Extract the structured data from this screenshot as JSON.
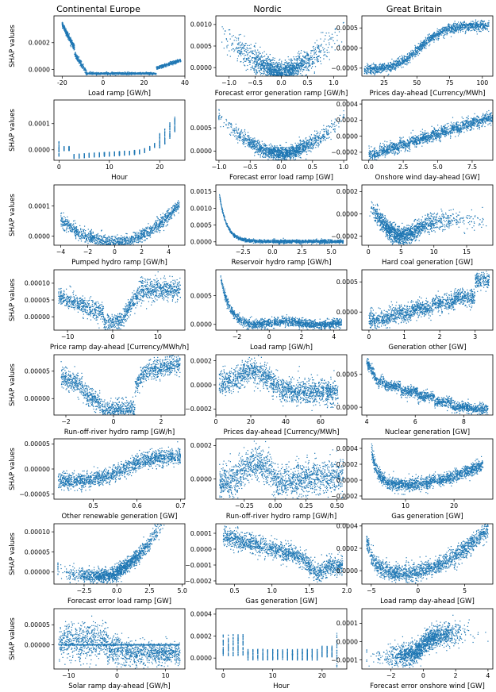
{
  "columns": [
    "Continental Europe",
    "Nordic",
    "Great Britain"
  ],
  "ylabel": "SHAP values",
  "colors": {
    "points": "#1f77b4"
  },
  "chart_data": [
    {
      "type": "scatter",
      "row": 0,
      "col": 0,
      "pattern": "ce_load_ramp",
      "xlabel": "Load ramp [GW/h]",
      "xlim": [
        -24,
        40
      ],
      "ylim": [
        -5e-05,
        0.0004
      ],
      "xticks": [
        -20,
        0,
        20,
        40
      ],
      "yticks": [
        0.0,
        0.0002
      ],
      "yticklabels": [
        "0.0000",
        "0.0002"
      ]
    },
    {
      "type": "scatter",
      "row": 0,
      "col": 1,
      "pattern": "vshape",
      "xlabel": "Forecast error generation ramp [GW/h]",
      "xlim": [
        -1.25,
        1.25
      ],
      "ylim": [
        -0.0002,
        0.0012
      ],
      "xticks": [
        -1.0,
        -0.5,
        0.0,
        0.5,
        1.0
      ],
      "xticklabels": [
        "−1.0",
        "−0.5",
        "0.0",
        "0.5",
        "1.0"
      ],
      "yticks": [
        0.0,
        0.0005,
        0.001
      ],
      "yticklabels": [
        "0.0000",
        "0.0005",
        "0.0010"
      ]
    },
    {
      "type": "scatter",
      "row": 0,
      "col": 2,
      "pattern": "sigmoid",
      "xlabel": "Prices day-ahead [Currency/MWh]",
      "xlim": [
        8,
        108
      ],
      "ylim": [
        -0.0007,
        0.0008
      ],
      "xticks": [
        25,
        50,
        75,
        100
      ],
      "yticks": [
        -0.0005,
        0.0,
        0.0005
      ],
      "yticklabels": [
        "−0.0005",
        "0.0000",
        "0.0005"
      ]
    },
    {
      "type": "scatter",
      "row": 1,
      "col": 0,
      "pattern": "hour_ce",
      "xlabel": "Hour",
      "xlim": [
        -1,
        25
      ],
      "ylim": [
        -4e-05,
        0.00019
      ],
      "xticks": [
        0,
        10,
        20
      ],
      "yticks": [
        0.0,
        0.0001
      ],
      "yticklabels": [
        "0.0000",
        "0.0001"
      ]
    },
    {
      "type": "scatter",
      "row": 1,
      "col": 1,
      "pattern": "vshape2",
      "xlabel": "Forecast error load ramp [GW]",
      "xlim": [
        -1.05,
        1.05
      ],
      "ylim": [
        -0.0002,
        0.0011
      ],
      "xticks": [
        -1.0,
        -0.5,
        0.0,
        0.5,
        1.0
      ],
      "xticklabels": [
        "−1.0",
        "−0.5",
        "0.0",
        "0.5",
        "1.0"
      ],
      "yticks": [
        0.0,
        0.0005
      ],
      "yticklabels": [
        "0.0000",
        "0.0005"
      ]
    },
    {
      "type": "scatter",
      "row": 1,
      "col": 2,
      "pattern": "steps_up",
      "xlabel": "Onshore wind day-ahead [GW]",
      "xlim": [
        -0.5,
        9
      ],
      "ylim": [
        -0.0003,
        0.00045
      ],
      "xticks": [
        0.0,
        2.5,
        5.0,
        7.5
      ],
      "xticklabels": [
        "0.0",
        "2.5",
        "5.0",
        "7.5"
      ],
      "yticks": [
        -0.0002,
        0.0,
        0.0002,
        0.0004
      ],
      "yticklabels": [
        "−0.0002",
        "0.0000",
        "0.0002",
        "0.0004"
      ]
    },
    {
      "type": "scatter",
      "row": 2,
      "col": 0,
      "pattern": "ushape",
      "xlabel": "Pumped hydro ramp [GW/h]",
      "xlim": [
        -4.5,
        5.2
      ],
      "ylim": [
        -3e-05,
        0.00017
      ],
      "xticks": [
        -4,
        -2,
        0,
        2,
        4
      ],
      "xticklabels": [
        "−4",
        "−2",
        "0",
        "2",
        "4"
      ],
      "yticks": [
        0.0,
        0.0001
      ],
      "yticklabels": [
        "0.0000",
        "0.0001"
      ]
    },
    {
      "type": "scatter",
      "row": 2,
      "col": 1,
      "pattern": "decay",
      "xlabel": "Reservoir hydro ramp [GW/h]",
      "xlim": [
        -4.8,
        6.3
      ],
      "ylim": [
        -0.0001,
        0.0017
      ],
      "xticks": [
        -2.5,
        0.0,
        2.5,
        5.0
      ],
      "xticklabels": [
        "−2.5",
        "0.0",
        "2.5",
        "5.0"
      ],
      "yticks": [
        0.0,
        0.0005,
        0.001,
        0.0015
      ],
      "yticklabels": [
        "0.0000",
        "0.0005",
        "0.0010",
        "0.0015"
      ]
    },
    {
      "type": "scatter",
      "row": 2,
      "col": 2,
      "pattern": "dip",
      "xlabel": "Hard coal generation [GW]",
      "xlim": [
        -1,
        19
      ],
      "ylim": [
        -0.00028,
        0.00026
      ],
      "xticks": [
        0,
        5,
        10,
        15
      ],
      "yticks": [
        -0.0002,
        0.0,
        0.0002
      ],
      "yticklabels": [
        "−0.0002",
        "0.0000",
        "0.0002"
      ]
    },
    {
      "type": "scatter",
      "row": 3,
      "col": 0,
      "pattern": "vdip",
      "xlabel": "Price ramp day-ahead [Currency/MWh/h]",
      "xlim": [
        -13,
        16
      ],
      "ylim": [
        -4e-05,
        0.00014
      ],
      "xticks": [
        -10,
        0,
        10
      ],
      "xticklabels": [
        "−10",
        "0",
        "10"
      ],
      "yticks": [
        0.0,
        5e-05,
        0.0001
      ],
      "yticklabels": [
        "0.00000",
        "0.00005",
        "0.00010"
      ]
    },
    {
      "type": "scatter",
      "row": 3,
      "col": 1,
      "pattern": "decay2",
      "xlabel": "Load ramp [GW/h]",
      "xlim": [
        -3.3,
        4.8
      ],
      "ylim": [
        -0.0001,
        0.00095
      ],
      "xticks": [
        -2,
        0,
        2,
        4
      ],
      "xticklabels": [
        "−2",
        "0",
        "2",
        "4"
      ],
      "yticks": [
        0.0,
        0.0005
      ],
      "yticklabels": [
        "0.0000",
        "0.0005"
      ]
    },
    {
      "type": "scatter",
      "row": 3,
      "col": 2,
      "pattern": "steps_up2",
      "xlabel": "Generation other [GW]",
      "xlim": [
        -0.2,
        3.5
      ],
      "ylim": [
        -0.0003,
        0.0007
      ],
      "xticks": [
        0,
        1,
        2,
        3
      ],
      "yticks": [
        0.0,
        0.0005
      ],
      "yticklabels": [
        "0.0000",
        "0.0005"
      ]
    },
    {
      "type": "scatter",
      "row": 4,
      "col": 0,
      "pattern": "bathtub",
      "xlabel": "Run-off-river hydro ramp [GW/h]",
      "xlim": [
        -2.5,
        3
      ],
      "ylim": [
        -3e-05,
        8e-05
      ],
      "xticks": [
        -2,
        0,
        2
      ],
      "xticklabels": [
        "−2",
        "0",
        "2"
      ],
      "yticks": [
        0.0,
        5e-05
      ],
      "yticklabels": [
        "0.00000",
        "0.00005"
      ]
    },
    {
      "type": "scatter",
      "row": 4,
      "col": 1,
      "pattern": "hump_down",
      "xlabel": "Prices day-ahead [Currency/MWh]",
      "xlim": [
        0,
        75
      ],
      "ylim": [
        -0.00025,
        0.00025
      ],
      "xticks": [
        0,
        20,
        40,
        60
      ],
      "yticks": [
        -0.0002,
        0.0,
        0.0002
      ],
      "yticklabels": [
        "−0.0002",
        "0.0000",
        "0.0002"
      ]
    },
    {
      "type": "scatter",
      "row": 4,
      "col": 2,
      "pattern": "steps_down",
      "xlabel": "Nuclear generation [GW]",
      "xlim": [
        3.8,
        9.2
      ],
      "ylim": [
        -0.00012,
        0.0008
      ],
      "xticks": [
        4,
        6,
        8
      ],
      "yticks": [
        0.0,
        0.0005
      ],
      "yticklabels": [
        "0.0000",
        "0.0005"
      ]
    },
    {
      "type": "scatter",
      "row": 5,
      "col": 0,
      "pattern": "rise",
      "xlabel": "Other renewable generation [GW]",
      "xlim": [
        0.41,
        0.71
      ],
      "ylim": [
        -6e-05,
        6e-05
      ],
      "xticks": [
        0.5,
        0.6,
        0.7
      ],
      "yticks": [
        -5e-05,
        0.0,
        5e-05
      ],
      "yticklabels": [
        "−0.00005",
        "0.00000",
        "0.00005"
      ]
    },
    {
      "type": "scatter",
      "row": 5,
      "col": 1,
      "pattern": "vshape3",
      "xlabel": "Run-off-river hydro ramp [GW/h]",
      "xlim": [
        -0.48,
        0.58
      ],
      "ylim": [
        -0.00012,
        0.00024
      ],
      "xticks": [
        -0.25,
        0.0,
        0.25,
        0.5
      ],
      "xticklabels": [
        "−0.25",
        "0.00",
        "0.25",
        "0.50"
      ],
      "yticks": [
        0.0,
        0.0002
      ],
      "yticklabels": [
        "0.0000",
        "0.0002"
      ]
    },
    {
      "type": "scatter",
      "row": 5,
      "col": 2,
      "pattern": "ushape2",
      "xlabel": "Gas generation [GW]",
      "xlim": [
        1,
        28
      ],
      "ylim": [
        -0.00024,
        0.00052
      ],
      "xticks": [
        10,
        20
      ],
      "yticks": [
        -0.0002,
        0.0,
        0.0002,
        0.0004
      ],
      "yticklabels": [
        "−0.0002",
        "0.0000",
        "0.0002",
        "0.0004"
      ]
    },
    {
      "type": "scatter",
      "row": 6,
      "col": 0,
      "pattern": "ushape3",
      "xlabel": "Forecast error load ramp [GW]",
      "xlim": [
        -4.8,
        5.2
      ],
      "ylim": [
        -3e-05,
        0.00012
      ],
      "xticks": [
        -2.5,
        0.0,
        2.5,
        5.0
      ],
      "xticklabels": [
        "−2.5",
        "0.0",
        "2.5",
        "5.0"
      ],
      "yticks": [
        0.0,
        5e-05,
        0.0001
      ],
      "yticklabels": [
        "0.00000",
        "0.00005",
        "0.00010"
      ]
    },
    {
      "type": "scatter",
      "row": 6,
      "col": 1,
      "pattern": "decline",
      "xlabel": "Gas generation [GW]",
      "xlim": [
        0.25,
        2.0
      ],
      "ylim": [
        -0.00022,
        0.00016
      ],
      "xticks": [
        0.5,
        1.0,
        1.5,
        2.0
      ],
      "xticklabels": [
        "0.5",
        "1.0",
        "1.5",
        "2.0"
      ],
      "yticks": [
        -0.0002,
        -0.0001,
        0.0,
        0.0001
      ],
      "yticklabels": [
        "−0.0002",
        "−0.0001",
        "0.0000",
        "0.0001"
      ]
    },
    {
      "type": "scatter",
      "row": 6,
      "col": 2,
      "pattern": "ushape4",
      "xlabel": "Load ramp day-ahead [GW]",
      "xlim": [
        -6,
        8
      ],
      "ylim": [
        -0.00012,
        0.00042
      ],
      "xticks": [
        -5,
        0,
        5
      ],
      "xticklabels": [
        "−5",
        "0",
        "5"
      ],
      "yticks": [
        0.0,
        0.0002,
        0.0004
      ],
      "yticklabels": [
        "0.0000",
        "0.0002",
        "0.0004"
      ]
    },
    {
      "type": "scatter",
      "row": 7,
      "col": 0,
      "pattern": "step_drop",
      "xlabel": "Solar ramp day-ahead [GW/h]",
      "xlim": [
        -13,
        14
      ],
      "ylim": [
        -6e-05,
        9e-05
      ],
      "xticks": [
        -10,
        0,
        10
      ],
      "xticklabels": [
        "−10",
        "0",
        "10"
      ],
      "yticks": [
        0.0,
        5e-05
      ],
      "yticklabels": [
        "0.00000",
        "0.00005"
      ]
    },
    {
      "type": "scatter",
      "row": 7,
      "col": 1,
      "pattern": "hour_nordic",
      "xlabel": "Hour",
      "xlim": [
        -1.5,
        25
      ],
      "ylim": [
        -0.0001,
        0.00045
      ],
      "xticks": [
        0,
        10,
        20
      ],
      "yticks": [
        0.0,
        0.0002,
        0.0004
      ],
      "yticklabels": [
        "0.0000",
        "0.0002",
        "0.0004"
      ]
    },
    {
      "type": "scatter",
      "row": 7,
      "col": 2,
      "pattern": "scurve",
      "xlabel": "Forecast error onshore wind [GW]",
      "xlim": [
        -3.8,
        4.3
      ],
      "ylim": [
        -0.00015,
        0.00018
      ],
      "xticks": [
        -2,
        0,
        2,
        4
      ],
      "xticklabels": [
        "−2",
        "0",
        "2",
        "4"
      ],
      "yticks": [
        -0.0001,
        0.0,
        0.0001
      ],
      "yticklabels": [
        "−0.0001",
        "0.0000",
        "0.0001"
      ]
    }
  ]
}
